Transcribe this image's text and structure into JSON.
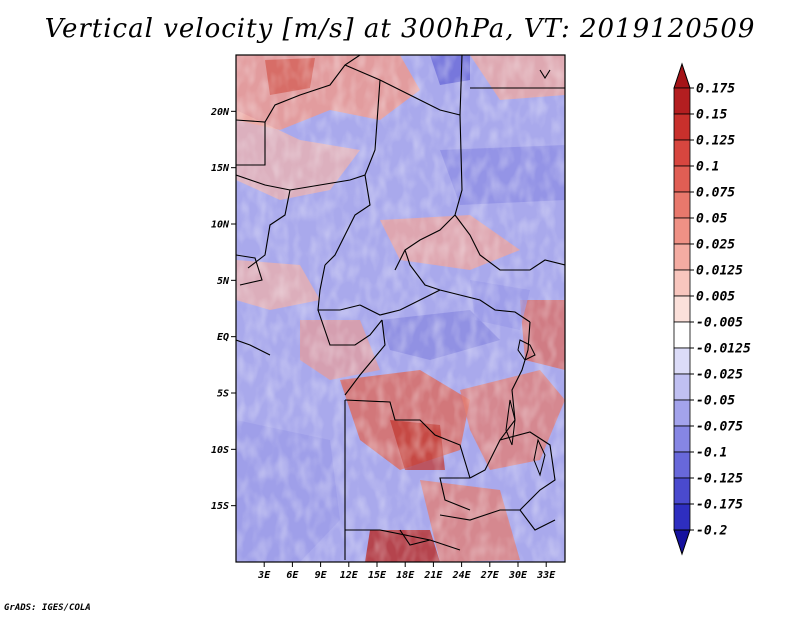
{
  "title": "Vertical velocity [m/s] at 300hPa, VT: 2019120509",
  "map": {
    "lon_range": [
      0,
      35
    ],
    "lat_range": [
      -20,
      25
    ],
    "lat_labels": [
      {
        "value": 20,
        "text": "20N"
      },
      {
        "value": 15,
        "text": "15N"
      },
      {
        "value": 10,
        "text": "10N"
      },
      {
        "value": 5,
        "text": "5N"
      },
      {
        "value": 0,
        "text": "EQ"
      },
      {
        "value": -5,
        "text": "5S"
      },
      {
        "value": -10,
        "text": "10S"
      },
      {
        "value": -15,
        "text": "15S"
      }
    ],
    "lon_labels": [
      {
        "value": 3,
        "text": "3E"
      },
      {
        "value": 6,
        "text": "6E"
      },
      {
        "value": 9,
        "text": "9E"
      },
      {
        "value": 12,
        "text": "12E"
      },
      {
        "value": 15,
        "text": "15E"
      },
      {
        "value": 18,
        "text": "18E"
      },
      {
        "value": 21,
        "text": "21E"
      },
      {
        "value": 24,
        "text": "24E"
      },
      {
        "value": 27,
        "text": "27E"
      },
      {
        "value": 30,
        "text": "30E"
      },
      {
        "value": 33,
        "text": "33E"
      }
    ]
  },
  "colorbar": {
    "levels": [
      {
        "label": "0.175",
        "color": "#b31e20"
      },
      {
        "label": "0.15",
        "color": "#c8302c"
      },
      {
        "label": "0.125",
        "color": "#d7463f"
      },
      {
        "label": "0.1",
        "color": "#e05e54"
      },
      {
        "label": "0.075",
        "color": "#e8786c"
      },
      {
        "label": "0.05",
        "color": "#ef9185"
      },
      {
        "label": "0.025",
        "color": "#f4aca2"
      },
      {
        "label": "0.0125",
        "color": "#f8c6be"
      },
      {
        "label": "0.005",
        "color": "#fbe0da"
      },
      {
        "label": "-0.005",
        "color": "#ffffff"
      },
      {
        "label": "-0.0125",
        "color": "#dcdcf8"
      },
      {
        "label": "-0.025",
        "color": "#c0c0f2"
      },
      {
        "label": "-0.05",
        "color": "#a3a3ec"
      },
      {
        "label": "-0.075",
        "color": "#8686e4"
      },
      {
        "label": "-0.1",
        "color": "#6868da"
      },
      {
        "label": "-0.125",
        "color": "#4a4ace"
      },
      {
        "label": "-0.175",
        "color": "#2e2ec0"
      },
      {
        "label": "-0.2",
        "color": "#1a1ab0"
      }
    ],
    "top_arrow_color": "#a51418",
    "bottom_arrow_color": "#15119e"
  },
  "credit": "GrADS: IGES/COLA"
}
